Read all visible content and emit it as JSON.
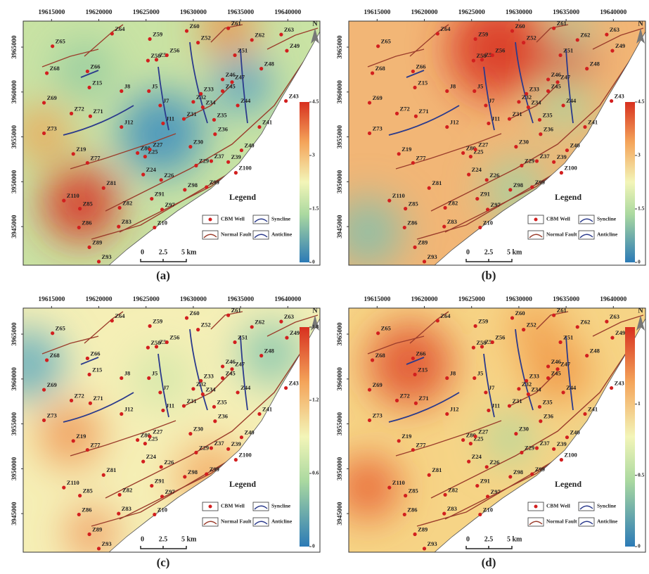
{
  "map": {
    "xlim": [
      19612000,
      19643400
    ],
    "ylim": [
      3940700,
      3967900
    ],
    "xticks": [
      19615000,
      19620000,
      19625000,
      19630000,
      19635000,
      19640000
    ],
    "yticks": [
      3945000,
      3950000,
      3955000,
      3960000,
      3965000
    ],
    "north": "N",
    "legend": {
      "title": "Legend",
      "items": [
        "CBM Well",
        "Syncline",
        "Normal Fault",
        "Anticline"
      ]
    },
    "scale": [
      "0",
      "2.5",
      "5 km"
    ],
    "wells": [
      {
        "name": "Z64",
        "x": 19621400,
        "y": 3966500
      },
      {
        "name": "Z65",
        "x": 19615100,
        "y": 3965100
      },
      {
        "name": "Z59",
        "x": 19625400,
        "y": 3965900
      },
      {
        "name": "Z60",
        "x": 19629300,
        "y": 3966800
      },
      {
        "name": "Z61",
        "x": 19633700,
        "y": 3967100
      },
      {
        "name": "Z62",
        "x": 19636200,
        "y": 3965800
      },
      {
        "name": "Z63",
        "x": 19639300,
        "y": 3966400
      },
      {
        "name": "Z49",
        "x": 19639900,
        "y": 3964600
      },
      {
        "name": "Z52",
        "x": 19630500,
        "y": 3965500
      },
      {
        "name": "Z58",
        "x": 19625200,
        "y": 3963500
      },
      {
        "name": "Z5",
        "x": 19626100,
        "y": 3963600
      },
      {
        "name": "Z56",
        "x": 19627200,
        "y": 3964100
      },
      {
        "name": "Z51",
        "x": 19634400,
        "y": 3964100
      },
      {
        "name": "Z68",
        "x": 19614500,
        "y": 3962100
      },
      {
        "name": "Z66",
        "x": 19618800,
        "y": 3962300
      },
      {
        "name": "Z15",
        "x": 19619000,
        "y": 3960500
      },
      {
        "name": "Z48",
        "x": 19637200,
        "y": 3962600
      },
      {
        "name": "Z46",
        "x": 19633100,
        "y": 3961400
      },
      {
        "name": "Z47",
        "x": 19634100,
        "y": 3961100
      },
      {
        "name": "J8",
        "x": 19622400,
        "y": 3960100
      },
      {
        "name": "J5",
        "x": 19625300,
        "y": 3960100
      },
      {
        "name": "Z45",
        "x": 19633100,
        "y": 3960100
      },
      {
        "name": "Z33",
        "x": 19630800,
        "y": 3959800
      },
      {
        "name": "Z69",
        "x": 19614200,
        "y": 3958800
      },
      {
        "name": "Z43",
        "x": 19639800,
        "y": 3959000
      },
      {
        "name": "Z72",
        "x": 19617100,
        "y": 3957600
      },
      {
        "name": "Z71",
        "x": 19619100,
        "y": 3957300
      },
      {
        "name": "J7",
        "x": 19626500,
        "y": 3958500
      },
      {
        "name": "Z32",
        "x": 19630000,
        "y": 3958900
      },
      {
        "name": "Z34",
        "x": 19631000,
        "y": 3958300
      },
      {
        "name": "Z44",
        "x": 19634700,
        "y": 3958500
      },
      {
        "name": "Z31",
        "x": 19629000,
        "y": 3957000
      },
      {
        "name": "J11",
        "x": 19626800,
        "y": 3956500
      },
      {
        "name": "Z35",
        "x": 19632200,
        "y": 3956900
      },
      {
        "name": "Z73",
        "x": 19614200,
        "y": 3955400
      },
      {
        "name": "J12",
        "x": 19622400,
        "y": 3956100
      },
      {
        "name": "Z41",
        "x": 19637000,
        "y": 3956100
      },
      {
        "name": "Z36",
        "x": 19632300,
        "y": 3955300
      },
      {
        "name": "Z19",
        "x": 19617300,
        "y": 3953100
      },
      {
        "name": "Z77",
        "x": 19618800,
        "y": 3952100
      },
      {
        "name": "Z80",
        "x": 19624100,
        "y": 3953200
      },
      {
        "name": "Z25",
        "x": 19624900,
        "y": 3952800
      },
      {
        "name": "Z27",
        "x": 19625400,
        "y": 3953600
      },
      {
        "name": "Z30",
        "x": 19629700,
        "y": 3953900
      },
      {
        "name": "Z40",
        "x": 19635100,
        "y": 3953500
      },
      {
        "name": "Z37",
        "x": 19631900,
        "y": 3952300
      },
      {
        "name": "Z39",
        "x": 19633700,
        "y": 3952200
      },
      {
        "name": "Z29",
        "x": 19630300,
        "y": 3951800
      },
      {
        "name": "Z24",
        "x": 19624700,
        "y": 3950800
      },
      {
        "name": "Z100",
        "x": 19634500,
        "y": 3951000
      },
      {
        "name": "Z26",
        "x": 19626600,
        "y": 3950200
      },
      {
        "name": "Z81",
        "x": 19620500,
        "y": 3949300
      },
      {
        "name": "Z98",
        "x": 19629100,
        "y": 3949100
      },
      {
        "name": "Z99",
        "x": 19631400,
        "y": 3949400
      },
      {
        "name": "Z110",
        "x": 19616300,
        "y": 3947900
      },
      {
        "name": "Z85",
        "x": 19618000,
        "y": 3947000
      },
      {
        "name": "Z91",
        "x": 19625600,
        "y": 3948100
      },
      {
        "name": "Z82",
        "x": 19622200,
        "y": 3947100
      },
      {
        "name": "Z97",
        "x": 19626700,
        "y": 3946900
      },
      {
        "name": "Z86",
        "x": 19617900,
        "y": 3944900
      },
      {
        "name": "Z83",
        "x": 19622100,
        "y": 3945000
      },
      {
        "name": "Z10",
        "x": 19625900,
        "y": 3944900
      },
      {
        "name": "Z89",
        "x": 19619000,
        "y": 3942700
      },
      {
        "name": "Z93",
        "x": 19620000,
        "y": 3941100
      }
    ]
  },
  "panels": [
    {
      "label": "(a)",
      "colorbar": {
        "lim": [
          0,
          4.5
        ],
        "ticks": [
          0,
          1.5,
          3,
          4.5
        ]
      }
    },
    {
      "label": "(b)",
      "colorbar": {
        "lim": [
          0,
          4.5
        ],
        "ticks": [
          0,
          1.5,
          3,
          4.5
        ]
      }
    },
    {
      "label": "(c)",
      "colorbar": {
        "lim": [
          0,
          1.8
        ],
        "ticks": [
          0,
          0.6,
          1.2,
          1.8
        ]
      }
    },
    {
      "label": "(d)",
      "colorbar": {
        "lim": [
          0,
          1.54
        ],
        "ticks": [
          0,
          0.5,
          1
        ]
      }
    }
  ]
}
